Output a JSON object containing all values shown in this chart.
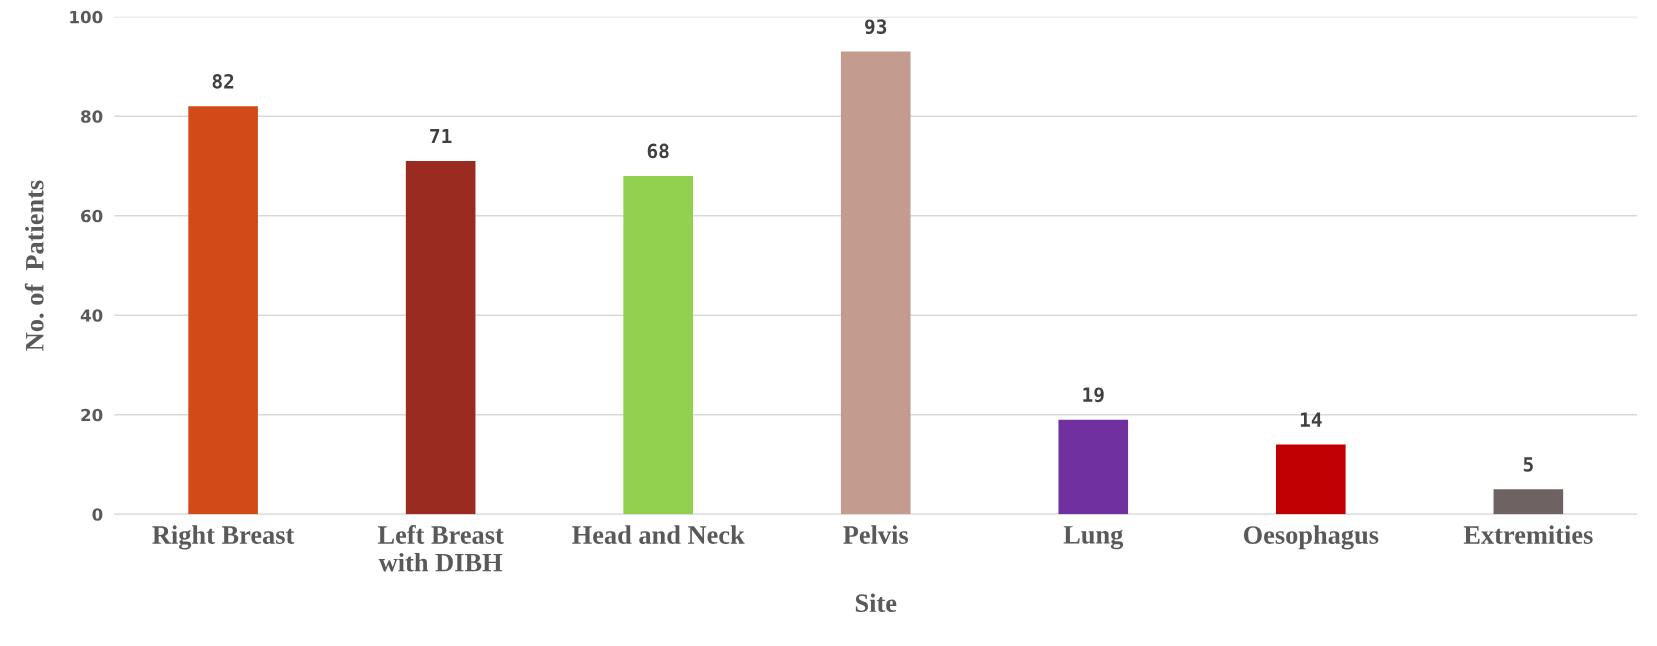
{
  "chart_data": {
    "type": "bar",
    "xlabel": "Site",
    "ylabel": "No. of  Patients",
    "categories": [
      "Right Breast",
      "Left Breast\nwith DIBH",
      "Head and Neck",
      "Pelvis",
      "Lung",
      "Oesophagus",
      "Extremities"
    ],
    "values": [
      82,
      71,
      68,
      93,
      19,
      14,
      5
    ],
    "colors": [
      "#d24a17",
      "#9a2b20",
      "#92d050",
      "#c49c8f",
      "#7030a0",
      "#c00000",
      "#6e6262"
    ],
    "ylim": [
      0,
      100
    ],
    "yticks": [
      0,
      20,
      40,
      60,
      80,
      100
    ],
    "grid": "y",
    "data_labels": true
  }
}
